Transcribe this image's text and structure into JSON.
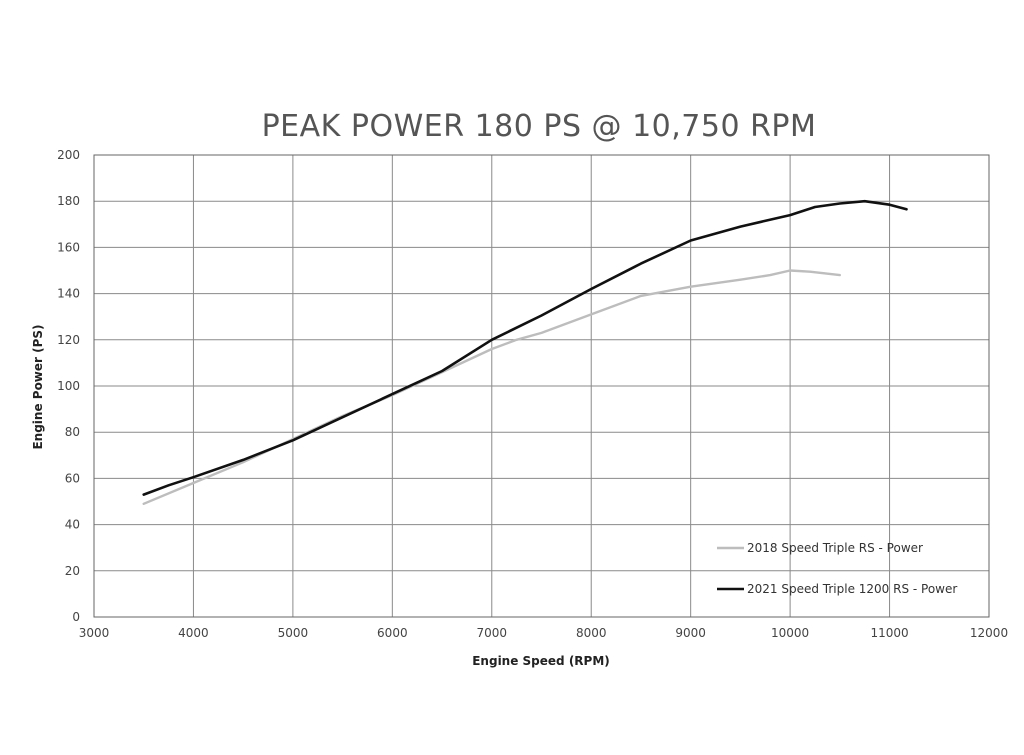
{
  "chart_data": {
    "type": "line",
    "title": "PEAK POWER 180 PS @ 10,750 RPM",
    "xlabel": "Engine Speed (RPM)",
    "ylabel": "Engine Power (PS)",
    "xlim": [
      3000,
      12000
    ],
    "ylim": [
      0,
      200
    ],
    "xticks": [
      3000,
      4000,
      5000,
      6000,
      7000,
      8000,
      9000,
      10000,
      11000,
      12000
    ],
    "yticks": [
      0,
      20,
      40,
      60,
      80,
      100,
      120,
      140,
      160,
      180,
      200
    ],
    "grid": true,
    "legend_position": "bottom-right",
    "series": [
      {
        "name": "2018 Speed Triple RS - Power",
        "color": "#bdbdbd",
        "x": [
          3500,
          4000,
          4500,
          5000,
          5500,
          6000,
          6500,
          7000,
          7250,
          7500,
          8000,
          8500,
          9000,
          9500,
          9800,
          10000,
          10200,
          10500
        ],
        "y": [
          49,
          58,
          67,
          77,
          87,
          96,
          106,
          116,
          120,
          123,
          131,
          139,
          143,
          146,
          148,
          150,
          149.5,
          148
        ]
      },
      {
        "name": "2021 Speed Triple 1200 RS - Power",
        "color": "#111111",
        "x": [
          3500,
          3750,
          4000,
          4500,
          5000,
          5500,
          6000,
          6500,
          7000,
          7500,
          8000,
          8500,
          9000,
          9500,
          10000,
          10250,
          10500,
          10750,
          11000,
          11170
        ],
        "y": [
          53,
          57,
          60.5,
          68,
          76.5,
          86.5,
          96.5,
          106.5,
          120,
          130.5,
          142,
          153,
          163,
          169,
          174,
          177.5,
          179,
          180,
          178.5,
          176.5
        ]
      }
    ]
  }
}
